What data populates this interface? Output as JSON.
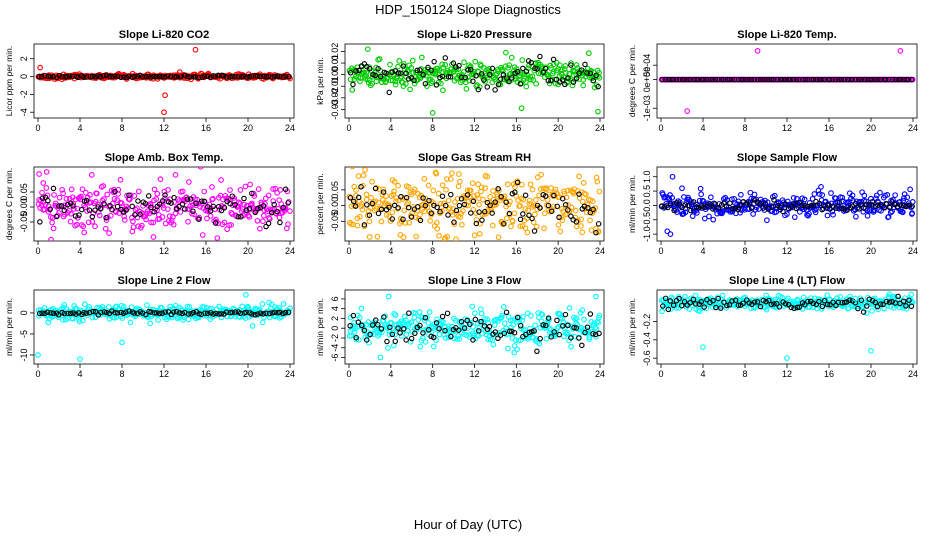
{
  "title": "HDP_150124  Slope Diagnostics",
  "xlabel": "Hour of Day (UTC)",
  "chart_data": [
    {
      "type": "scatter",
      "title": "Slope Li-820 CO2",
      "ylabel": "Licor ppm per min.",
      "xlim": [
        0,
        24
      ],
      "ylim": [
        -4.2,
        3.2
      ],
      "xticks": [
        0,
        4,
        8,
        12,
        16,
        20,
        24
      ],
      "yticks": [
        -4,
        -2,
        0,
        2
      ],
      "ytick_labels": [
        "-4",
        "-2",
        "0",
        "2"
      ],
      "color": "#ff0000",
      "noise": 0.12,
      "mean_noise": 0.06,
      "outliers": [
        [
          0.2,
          1.0
        ],
        [
          12.0,
          -4.0
        ],
        [
          12.1,
          -2.1
        ],
        [
          15.0,
          3.0
        ],
        [
          13.5,
          0.5
        ]
      ]
    },
    {
      "type": "scatter",
      "title": "Slope Li-820 Pressure",
      "ylabel": "kPa per min.",
      "xlim": [
        0,
        24
      ],
      "ylim": [
        -0.034,
        0.023
      ],
      "xticks": [
        0,
        4,
        8,
        12,
        16,
        20,
        24
      ],
      "yticks": [
        -0.03,
        -0.02,
        -0.01,
        0.0,
        0.01,
        0.02
      ],
      "ytick_labels": [
        "-0.03",
        "-0.02",
        "-0.01",
        "0.00",
        "0.01",
        "0.02"
      ],
      "color": "#00cc00",
      "noise": 0.005,
      "mean_noise": 0.006,
      "outliers": [
        [
          1.8,
          0.022
        ],
        [
          8.0,
          -0.033
        ],
        [
          23.8,
          -0.032
        ],
        [
          15.0,
          0.019
        ],
        [
          16.5,
          -0.029
        ]
      ]
    },
    {
      "type": "scatter",
      "title": "Slope Li-820 Temp.",
      "ylabel": "degrees C per min.",
      "xlim": [
        0,
        24
      ],
      "ylim": [
        -0.0012,
        0.0011
      ],
      "xticks": [
        0,
        4,
        8,
        12,
        16,
        20,
        24
      ],
      "yticks": [
        -0.001,
        0.0,
        0.0005
      ],
      "ytick_labels": [
        "-1e-03",
        "0e+00",
        "5e-04"
      ],
      "color": "#ff00ff",
      "noise": 0.0,
      "mean_noise": 0.0,
      "outliers": [
        [
          2.5,
          -0.0011
        ],
        [
          9.2,
          0.001
        ],
        [
          22.8,
          0.001
        ]
      ]
    },
    {
      "type": "scatter",
      "title": "Slope Amb. Box Temp.",
      "ylabel": "degrees C per min.",
      "xlim": [
        0,
        24
      ],
      "ylim": [
        -0.1,
        0.12
      ],
      "xticks": [
        0,
        4,
        8,
        12,
        16,
        20,
        24
      ],
      "yticks": [
        -0.05,
        0.0,
        0.05
      ],
      "ytick_labels": [
        "-0.05",
        "0.00",
        "0.05"
      ],
      "color": "#ff00ff",
      "noise": 0.04,
      "mean_noise": 0.03,
      "outliers": [
        [
          0.1,
          0.11
        ],
        [
          0.5,
          0.08
        ],
        [
          11.0,
          -0.1
        ],
        [
          4.4,
          -0.085
        ],
        [
          20.2,
          0.075
        ]
      ]
    },
    {
      "type": "scatter",
      "title": "Slope Gas Stream RH",
      "ylabel": "percent per min.",
      "xlim": [
        0,
        24
      ],
      "ylim": [
        -0.1,
        0.11
      ],
      "xticks": [
        0,
        4,
        8,
        12,
        16,
        20,
        24
      ],
      "yticks": [
        -0.05,
        0.0,
        0.05
      ],
      "ytick_labels": [
        "-0.05",
        "0.00",
        "0.05"
      ],
      "color": "#ffa500",
      "noise": 0.045,
      "mean_noise": 0.035,
      "outliers": [
        [
          0.5,
          0.06
        ],
        [
          10.5,
          0.1
        ],
        [
          12.5,
          -0.09
        ],
        [
          22.3,
          -0.085
        ]
      ]
    },
    {
      "type": "scatter",
      "title": "Slope Sample Flow",
      "ylabel": "ml/min per min.",
      "xlim": [
        0,
        24
      ],
      "ylim": [
        -1.1,
        1.2
      ],
      "xticks": [
        0,
        4,
        8,
        12,
        16,
        20,
        24
      ],
      "yticks": [
        -1.0,
        -0.5,
        0.0,
        0.5,
        1.0
      ],
      "ytick_labels": [
        "-1.0",
        "-0.5",
        "0.0",
        "0.5",
        "1.0"
      ],
      "color": "#0000ff",
      "noise": 0.2,
      "mean_noise": 0.08,
      "outliers": [
        [
          0.6,
          -0.9
        ],
        [
          1.1,
          1.0
        ],
        [
          0.9,
          -1.0
        ],
        [
          2.0,
          0.6
        ],
        [
          23.9,
          -0.3
        ]
      ]
    },
    {
      "type": "scatter",
      "title": "Slope Line 2 Flow",
      "ylabel": "ml/min per min.",
      "xlim": [
        0,
        24
      ],
      "ylim": [
        -11.2,
        4.5
      ],
      "xticks": [
        0,
        4,
        8,
        12,
        16,
        20,
        24
      ],
      "yticks": [
        -10,
        -5,
        0
      ],
      "ytick_labels": [
        "-10",
        "-5",
        "0"
      ],
      "color": "#00ffff",
      "noise": 0.9,
      "mean_noise": 0.2,
      "outliers": [
        [
          0.0,
          -10.0
        ],
        [
          4.0,
          -11.0
        ],
        [
          8.0,
          -7.0
        ],
        [
          19.8,
          4.3
        ]
      ]
    },
    {
      "type": "scatter",
      "title": "Slope Line 3 Flow",
      "ylabel": "ml/min per min.",
      "xlim": [
        0,
        24
      ],
      "ylim": [
        -6.5,
        7.0
      ],
      "xticks": [
        0,
        4,
        8,
        12,
        16,
        20,
        24
      ],
      "yticks": [
        -6,
        -4,
        -2,
        0,
        2,
        4,
        6
      ],
      "ytick_labels": [
        "-6",
        "-4",
        "-2",
        "0",
        "2",
        "4",
        "6"
      ],
      "color": "#00ffff",
      "noise": 1.6,
      "mean_noise": 1.5,
      "outliers": [
        [
          3.0,
          -6.0
        ],
        [
          3.8,
          6.5
        ],
        [
          23.6,
          6.5
        ],
        [
          15.8,
          -5.0
        ]
      ]
    },
    {
      "type": "scatter",
      "title": "Slope Line 4 (LT) Flow",
      "ylabel": "ml/min per min.",
      "xlim": [
        0,
        24
      ],
      "ylim": [
        -0.62,
        0.1
      ],
      "xticks": [
        0,
        4,
        8,
        12,
        16,
        20,
        24
      ],
      "yticks": [
        -0.6,
        -0.4,
        -0.2
      ],
      "ytick_labels": [
        "-0.6",
        "-0.4",
        "-0.2"
      ],
      "color": "#00ffff",
      "noise": 0.035,
      "mean_noise": 0.03,
      "outliers": [
        [
          4.0,
          -0.48
        ],
        [
          12.0,
          -0.6
        ],
        [
          20.0,
          -0.52
        ],
        [
          18.5,
          0.05
        ]
      ]
    }
  ]
}
